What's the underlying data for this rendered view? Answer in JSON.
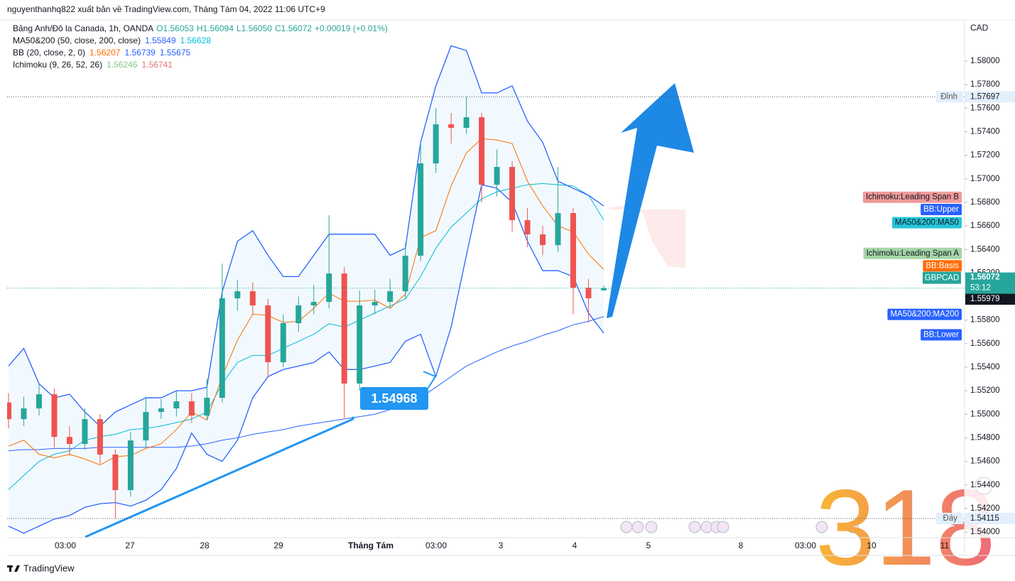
{
  "header": {
    "title": "nguyenthanhq822 xuất bản về TradingView.com, Tháng Tám 04, 2022 11:06 UTC+9"
  },
  "chart_data": {
    "type": "candlestick",
    "title": "Bảng Anh/Đô la Canada, 1h, OANDA",
    "ohlc_legend": [
      "O1.56053",
      "H1.56094",
      "L1.56050",
      "C1.56072",
      "+0.00019 (+0.01%)"
    ],
    "currency": "CAD",
    "open": [
      1.551,
      1.54959,
      1.5505,
      1.5517,
      1.54808,
      1.54748,
      1.54959,
      1.54658,
      1.54356,
      1.54778,
      1.5502,
      1.5505,
      1.5511,
      1.54989,
      1.5514,
      1.55985,
      1.56045,
      1.55925,
      1.55442,
      1.55774,
      1.55925,
      1.55955,
      1.56196,
      1.55261,
      1.55925,
      1.55955,
      1.56045,
      1.56347,
      1.57131,
      1.57463,
      1.57433,
      1.57523,
      1.5695,
      1.57101,
      1.56649,
      1.56528,
      1.56437,
      1.56709,
      1.56075,
      1.56053
    ],
    "high": [
      1.5518,
      1.5515,
      1.5526,
      1.5522,
      1.549,
      1.5505,
      1.55,
      1.547,
      1.5485,
      1.5515,
      1.5513,
      1.552,
      1.5518,
      1.553,
      1.5628,
      1.5614,
      1.5612,
      1.5598,
      1.5585,
      1.56,
      1.561,
      1.5669,
      1.5625,
      1.5605,
      1.5606,
      1.5615,
      1.5645,
      1.573,
      1.576,
      1.5756,
      1.57697,
      1.5756,
      1.5725,
      1.5715,
      1.5675,
      1.566,
      1.571,
      1.5675,
      1.5615,
      1.56094
    ],
    "low": [
      1.5488,
      1.549,
      1.5499,
      1.5472,
      1.5465,
      1.547,
      1.5458,
      1.54115,
      1.543,
      1.5472,
      1.5496,
      1.5498,
      1.5493,
      1.5495,
      1.551,
      1.5588,
      1.5585,
      1.5532,
      1.554,
      1.557,
      1.5585,
      1.559,
      1.54968,
      1.552,
      1.5585,
      1.559,
      1.5598,
      1.563,
      1.5705,
      1.573,
      1.5738,
      1.568,
      1.5685,
      1.5655,
      1.5642,
      1.5635,
      1.5638,
      1.5585,
      1.5578,
      1.5605
    ],
    "close": [
      1.54959,
      1.5505,
      1.5517,
      1.54808,
      1.54748,
      1.54959,
      1.54658,
      1.54356,
      1.54778,
      1.5502,
      1.5505,
      1.5511,
      1.54989,
      1.5514,
      1.55985,
      1.56045,
      1.55925,
      1.55442,
      1.55774,
      1.55925,
      1.55955,
      1.56196,
      1.55261,
      1.55925,
      1.55955,
      1.56045,
      1.56347,
      1.57131,
      1.57463,
      1.57433,
      1.57523,
      1.5695,
      1.57101,
      1.56649,
      1.56528,
      1.56437,
      1.56709,
      1.56075,
      1.55985,
      1.56072
    ],
    "up_color": "#26a69a",
    "down_color": "#ef5350",
    "indicators": [
      {
        "name": "MA50&200 (50, close, 200, close)",
        "series": [
          {
            "name": "MA50&200:MA200",
            "value": 1.55849,
            "color": "#2962ff",
            "values": [
              1.5469,
              1.547,
              1.547,
              1.5471,
              1.5471,
              1.5471,
              1.5472,
              1.5472,
              1.5472,
              1.5472,
              1.5472,
              1.5472,
              1.5473,
              1.5475,
              1.5478,
              1.548,
              1.5483,
              1.5485,
              1.5487,
              1.549,
              1.5492,
              1.5494,
              1.5496,
              1.5498,
              1.55,
              1.5504,
              1.5508,
              1.5514,
              1.5523,
              1.5532,
              1.5541,
              1.5547,
              1.5553,
              1.5558,
              1.5562,
              1.5567,
              1.5571,
              1.5576,
              1.5579,
              1.5583
            ]
          },
          {
            "name": "MA50&200:MA50",
            "value": 1.56628,
            "color": "#00bcd4",
            "values": [
              1.5436,
              1.5448,
              1.546,
              1.5466,
              1.5469,
              1.5478,
              1.5481,
              1.5483,
              1.5487,
              1.5488,
              1.549,
              1.5493,
              1.5496,
              1.5502,
              1.5526,
              1.5544,
              1.555,
              1.555,
              1.5556,
              1.5562,
              1.5568,
              1.5577,
              1.5574,
              1.558,
              1.5586,
              1.5592,
              1.5598,
              1.5617,
              1.5641,
              1.5659,
              1.5671,
              1.5683,
              1.5689,
              1.5692,
              1.5695,
              1.5696,
              1.5695,
              1.5694,
              1.5686,
              1.5665
            ]
          }
        ]
      },
      {
        "name": "BB (20, close, 2, 0)",
        "series": [
          {
            "name": "BB:Basis",
            "value": 1.56207,
            "color": "#ff6d00",
            "values": [
              1.5473,
              1.5478,
              1.5466,
              1.5463,
              1.5466,
              1.5462,
              1.5457,
              1.5464,
              1.5465,
              1.5471,
              1.5475,
              1.5487,
              1.5502,
              1.5495,
              1.5532,
              1.5563,
              1.5585,
              1.5584,
              1.5578,
              1.5579,
              1.559,
              1.5603,
              1.5596,
              1.5596,
              1.5597,
              1.559,
              1.5602,
              1.565,
              1.5656,
              1.5694,
              1.5722,
              1.5734,
              1.5733,
              1.573,
              1.5698,
              1.5677,
              1.566,
              1.5655,
              1.5636,
              1.5623
            ]
          },
          {
            "name": "BB:Upper",
            "value": 1.56739,
            "color": "#2962ff",
            "values": [
              1.5541,
              1.5556,
              1.5526,
              1.5514,
              1.5517,
              1.5502,
              1.549,
              1.5502,
              1.5508,
              1.5514,
              1.5514,
              1.552,
              1.552,
              1.5523,
              1.5604,
              1.5647,
              1.5656,
              1.5635,
              1.5617,
              1.5617,
              1.5635,
              1.5653,
              1.5653,
              1.5653,
              1.5653,
              1.5635,
              1.5641,
              1.5731,
              1.5779,
              1.5813,
              1.5809,
              1.5773,
              1.5773,
              1.5779,
              1.5749,
              1.5731,
              1.5698,
              1.5692,
              1.5686,
              1.5677
            ]
          },
          {
            "name": "BB:Lower",
            "value": 1.55675,
            "color": "#2962ff",
            "values": [
              1.5405,
              1.5399,
              1.5405,
              1.5411,
              1.5414,
              1.5421,
              1.5424,
              1.5425,
              1.5422,
              1.5427,
              1.5436,
              1.5454,
              1.5484,
              1.5466,
              1.546,
              1.5478,
              1.5514,
              1.5532,
              1.5538,
              1.5541,
              1.5544,
              1.5553,
              1.5538,
              1.5538,
              1.5541,
              1.5544,
              1.5562,
              1.5568,
              1.5532,
              1.5574,
              1.5635,
              1.5695,
              1.5692,
              1.568,
              1.5647,
              1.5622,
              1.5622,
              1.5617,
              1.5586,
              1.5569
            ]
          }
        ]
      },
      {
        "name": "Ichimoku (9, 26, 52, 26)",
        "series": [
          {
            "name": "Ichimoku:Leading Span A",
            "value": 1.56246,
            "color": "#81c784"
          },
          {
            "name": "Ichimoku:Leading Span B",
            "value": 1.56741,
            "color": "#e57373"
          }
        ]
      }
    ],
    "last_price": {
      "symbol": "GBPCAD",
      "value": 1.56072,
      "countdown": "53:12"
    },
    "price_tags": [
      1.55979
    ],
    "high_marker": {
      "label": "Đỉnh",
      "value": 1.57697
    },
    "low_marker": {
      "label": "Đáy",
      "value": 1.54115
    },
    "callout": 1.54968,
    "ylim": [
      1.53952,
      1.58338
    ],
    "yticks": [
      {
        "value": 1.54,
        "label": "1.54000"
      },
      {
        "value": 1.542,
        "label": "1.54200"
      },
      {
        "value": 1.544,
        "label": "1.54400"
      },
      {
        "value": 1.546,
        "label": "1.54600"
      },
      {
        "value": 1.548,
        "label": "1.54800"
      },
      {
        "value": 1.55,
        "label": "1.55000"
      },
      {
        "value": 1.552,
        "label": "1.55200"
      },
      {
        "value": 1.554,
        "label": "1.55400"
      },
      {
        "value": 1.556,
        "label": "1.55600"
      },
      {
        "value": 1.558,
        "label": "1.55800"
      },
      {
        "value": 1.56,
        "label": "1.56000"
      },
      {
        "value": 1.562,
        "label": "1.56200"
      },
      {
        "value": 1.564,
        "label": "1.56400"
      },
      {
        "value": 1.566,
        "label": "1.56600"
      },
      {
        "value": 1.568,
        "label": "1.56800"
      },
      {
        "value": 1.57,
        "label": "1.57000"
      },
      {
        "value": 1.572,
        "label": "1.57200"
      },
      {
        "value": 1.574,
        "label": "1.57400"
      },
      {
        "value": 1.576,
        "label": "1.57600"
      },
      {
        "value": 1.578,
        "label": "1.57800"
      },
      {
        "value": 1.58,
        "label": "1.58000"
      }
    ],
    "grid": false,
    "time_labels": [
      "03:00",
      "27",
      "28",
      "29",
      "Tháng Tám",
      "03:00",
      "3",
      "4",
      "5",
      "8",
      "03:00",
      "10",
      "11"
    ]
  },
  "watermark": "318",
  "footer": {
    "brand": "TradingView"
  }
}
